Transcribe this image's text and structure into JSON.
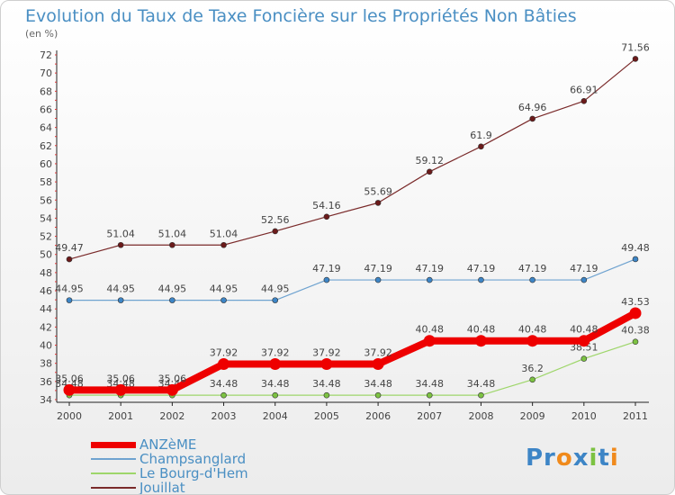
{
  "title": "Evolution du Taux de Taxe Foncière sur les Propriétés Non Bâties",
  "unit_label": "(en %)",
  "logo_text": "Proxiti",
  "chart_data": {
    "type": "line",
    "x": [
      "2000",
      "2001",
      "2002",
      "2003",
      "2004",
      "2005",
      "2006",
      "2007",
      "2008",
      "2009",
      "2010",
      "2011"
    ],
    "ylim": [
      34,
      72
    ],
    "yticks": [
      34,
      36,
      38,
      40,
      42,
      44,
      46,
      48,
      50,
      52,
      54,
      56,
      58,
      60,
      62,
      64,
      66,
      68,
      70,
      72
    ],
    "grid": false,
    "legend_position": "bottom-left",
    "series": [
      {
        "name": "Jouillat",
        "color": "#7a2a2a",
        "dot": "#6b1a1a",
        "values": [
          49.47,
          51.04,
          51.04,
          51.04,
          52.56,
          54.16,
          55.69,
          59.12,
          61.9,
          64.96,
          66.91,
          71.56
        ],
        "labels": [
          "49.47",
          "51.04",
          "51.04",
          "51.04",
          "52.56",
          "54.16",
          "55.69",
          "59.12",
          "61.9",
          "64.96",
          "66.91",
          "71.56"
        ]
      },
      {
        "name": "Champsanglard",
        "color": "#6fa3d0",
        "dot": "#3d85c6",
        "values": [
          44.95,
          44.95,
          44.95,
          44.95,
          44.95,
          47.19,
          47.19,
          47.19,
          47.19,
          47.19,
          47.19,
          49.48
        ],
        "labels": [
          "44.95",
          "44.95",
          "44.95",
          "44.95",
          "44.95",
          "47.19",
          "47.19",
          "47.19",
          "47.19",
          "47.19",
          "47.19",
          "49.48"
        ]
      },
      {
        "name": "Le Bourg-d'Hem",
        "color": "#9ed66a",
        "dot": "#7cc242",
        "values": [
          34.48,
          34.48,
          34.48,
          34.48,
          34.48,
          34.48,
          34.48,
          34.48,
          34.48,
          36.2,
          38.51,
          40.38
        ],
        "labels": [
          "34.48",
          "34.48",
          "34.48",
          "34.48",
          "34.48",
          "34.48",
          "34.48",
          "34.48",
          "34.48",
          "36.2",
          "38.51",
          "40.38"
        ]
      },
      {
        "name": "ANZèME",
        "color": "#ee0000",
        "dot": "#ee0000",
        "values": [
          35.06,
          35.06,
          35.06,
          37.92,
          37.92,
          37.92,
          37.92,
          40.48,
          40.48,
          40.48,
          40.48,
          43.53
        ],
        "labels": [
          "35.06",
          "35.06",
          "35.06",
          "37.92",
          "37.92",
          "37.92",
          "37.92",
          "40.48",
          "40.48",
          "40.48",
          "40.48",
          "43.53"
        ]
      }
    ]
  },
  "legend": [
    {
      "name": "ANZèME",
      "color": "#ee0000",
      "thick": true
    },
    {
      "name": "Champsanglard",
      "color": "#6fa3d0",
      "thick": false
    },
    {
      "name": "Le Bourg-d'Hem",
      "color": "#9ed66a",
      "thick": false
    },
    {
      "name": "Jouillat",
      "color": "#7a2a2a",
      "thick": false
    }
  ]
}
